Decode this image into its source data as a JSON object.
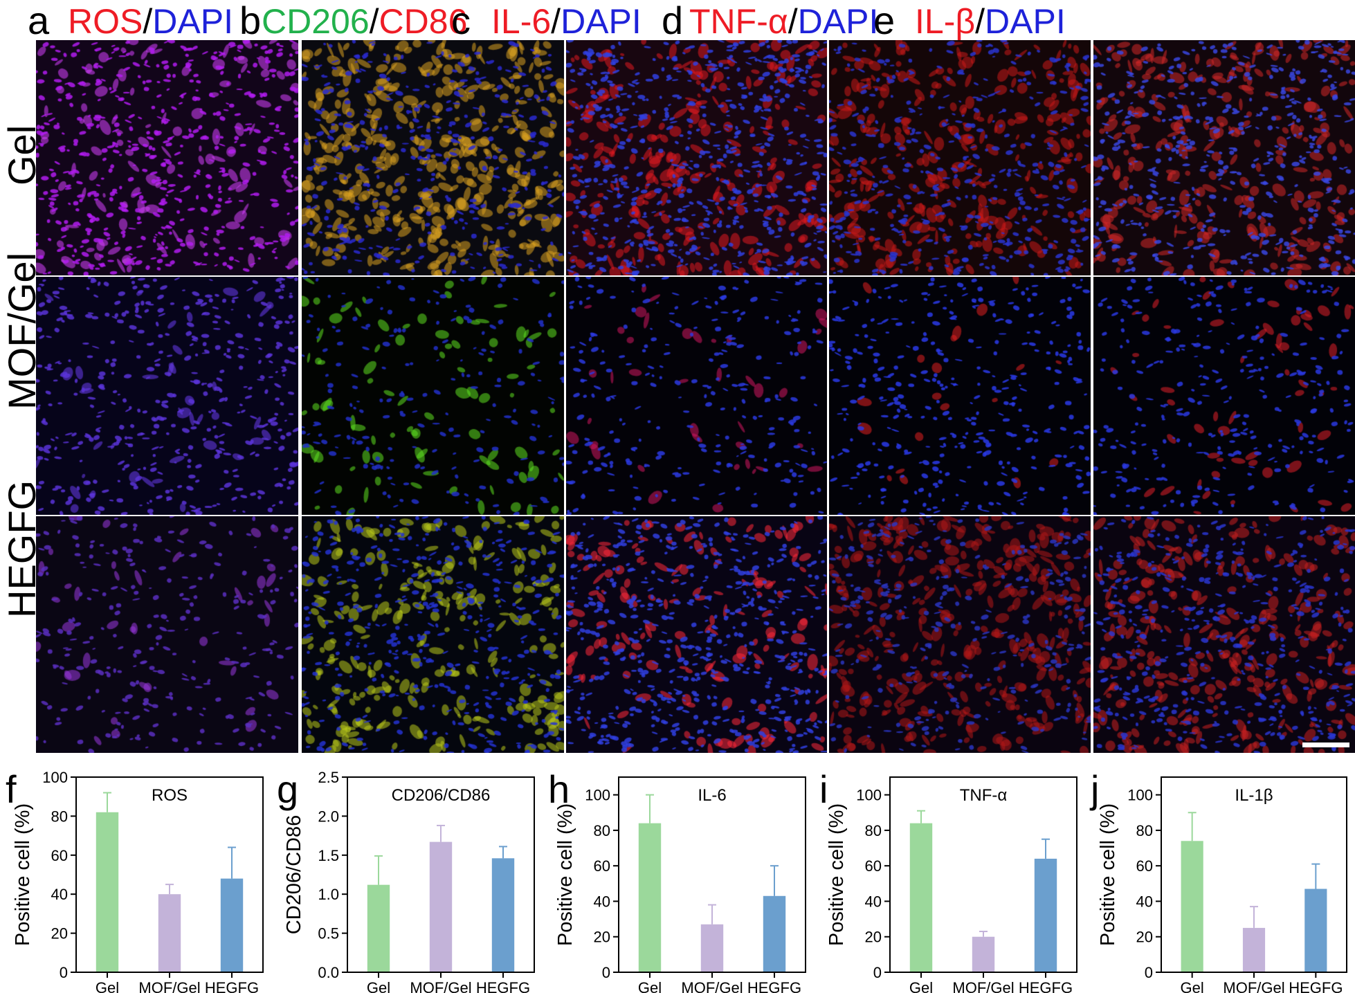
{
  "panels": [
    {
      "letter": "a",
      "title": [
        {
          "text": "ROS",
          "color": "red"
        },
        {
          "text": "/",
          "color": "black"
        },
        {
          "text": "DAPI",
          "color": "blue"
        }
      ],
      "stain": "ros"
    },
    {
      "letter": "b",
      "title": [
        {
          "text": "CD206",
          "color": "green"
        },
        {
          "text": "/",
          "color": "black"
        },
        {
          "text": "CD86",
          "color": "red"
        }
      ],
      "stain": "cd"
    },
    {
      "letter": "c",
      "title": [
        {
          "text": "IL-6",
          "color": "red"
        },
        {
          "text": "/",
          "color": "black"
        },
        {
          "text": "DAPI",
          "color": "blue"
        }
      ],
      "stain": "il6"
    },
    {
      "letter": "d",
      "title": [
        {
          "text": "TNF-α",
          "color": "red"
        },
        {
          "text": "/",
          "color": "black"
        },
        {
          "text": "DAPI",
          "color": "blue"
        }
      ],
      "stain": "tnf"
    },
    {
      "letter": "e",
      "title": [
        {
          "text": "IL-β",
          "color": "red"
        },
        {
          "text": "/",
          "color": "black"
        },
        {
          "text": "DAPI",
          "color": "blue"
        }
      ],
      "stain": "il1b"
    }
  ],
  "rows": [
    "Gel",
    "MOF/Gel",
    "HEGFG"
  ],
  "colors": {
    "red": "#ee1c25",
    "blue": "#1e22d9",
    "green": "#22b14c",
    "black": "#000000",
    "bar_gel": "#9bd89b",
    "bar_mof": "#c3b3d9",
    "bar_hegfg": "#6b9fce"
  },
  "chart_data": [
    {
      "letter": "f",
      "type": "bar",
      "title": "ROS",
      "ylabel": "Positive cell (%)",
      "categories": [
        "Gel",
        "MOF/Gel",
        "HEGFG"
      ],
      "values": [
        82,
        40,
        48
      ],
      "errors": [
        10,
        5,
        16
      ],
      "ylim": [
        0,
        100
      ],
      "yticks": [
        0,
        20,
        40,
        60,
        80,
        100
      ],
      "yticklabels": [
        "0",
        "20",
        "40",
        "60",
        "80",
        "100"
      ]
    },
    {
      "letter": "g",
      "type": "bar",
      "title": "CD206/CD86",
      "ylabel": "CD206/CD86",
      "categories": [
        "Gel",
        "MOF/Gel",
        "HEGFG"
      ],
      "values": [
        1.12,
        1.67,
        1.46
      ],
      "errors": [
        0.37,
        0.21,
        0.15
      ],
      "ylim": [
        0,
        2.5
      ],
      "yticks": [
        0,
        0.5,
        1,
        1.5,
        2,
        2.5
      ],
      "yticklabels": [
        "0.0",
        "0.5",
        "1.0",
        "1.5",
        "2.0",
        "2.5"
      ]
    },
    {
      "letter": "h",
      "type": "bar",
      "title": "IL-6",
      "ylabel": "Positive cell (%)",
      "categories": [
        "Gel",
        "MOF/Gel",
        "HEGFG"
      ],
      "values": [
        84,
        27,
        43
      ],
      "errors": [
        16,
        11,
        17
      ],
      "ylim": [
        0,
        110
      ],
      "yticks": [
        0,
        20,
        40,
        60,
        80,
        100
      ],
      "yticklabels": [
        "0",
        "20",
        "40",
        "60",
        "80",
        "100"
      ]
    },
    {
      "letter": "i",
      "type": "bar",
      "title": "TNF-α",
      "ylabel": "Positive cell (%)",
      "categories": [
        "Gel",
        "MOF/Gel",
        "HEGFG"
      ],
      "values": [
        84,
        20,
        64
      ],
      "errors": [
        7,
        3,
        11
      ],
      "ylim": [
        0,
        110
      ],
      "yticks": [
        0,
        20,
        40,
        60,
        80,
        100
      ],
      "yticklabels": [
        "0",
        "20",
        "40",
        "60",
        "80",
        "100"
      ]
    },
    {
      "letter": "j",
      "type": "bar",
      "title": "IL-1β",
      "ylabel": "Positive cell (%)",
      "categories": [
        "Gel",
        "MOF/Gel",
        "HEGFG"
      ],
      "values": [
        74,
        25,
        47
      ],
      "errors": [
        16,
        12,
        14
      ],
      "ylim": [
        0,
        110
      ],
      "yticks": [
        0,
        20,
        40,
        60,
        80,
        100
      ],
      "yticklabels": [
        "0",
        "20",
        "40",
        "60",
        "80",
        "100"
      ]
    }
  ]
}
